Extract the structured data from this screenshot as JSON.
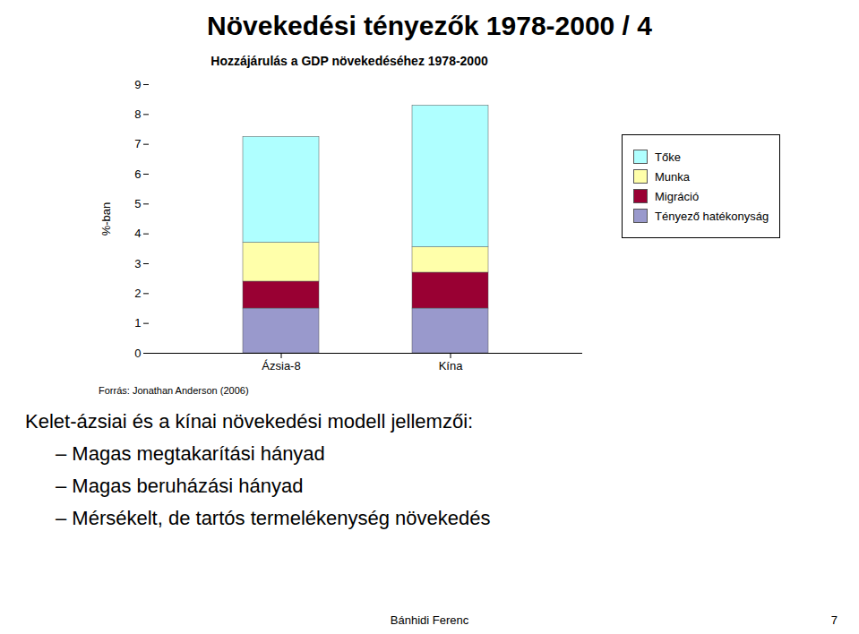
{
  "title": "Növekedési tényezők 1978-2000 / 4",
  "chart_data": {
    "type": "bar",
    "stacked": true,
    "legend": "right",
    "title": "Hozzájárulás a GDP növekedéséhez 1978-2000",
    "ylabel": "%-ban",
    "categories": [
      "Ázsia-8",
      "Kína"
    ],
    "series": [
      {
        "name": "Tényező hatékonyság",
        "color": "#9999CC",
        "values": [
          1.5,
          1.5
        ]
      },
      {
        "name": "Migráció",
        "color": "#990033",
        "values": [
          0.9,
          1.2
        ]
      },
      {
        "name": "Munka",
        "color": "#FFFFAA",
        "values": [
          1.3,
          0.85
        ]
      },
      {
        "name": "Tőke",
        "color": "#AFFFFF",
        "values": [
          3.55,
          4.75
        ]
      }
    ],
    "ylim": [
      0,
      9
    ],
    "yticks": [
      0,
      1,
      2,
      3,
      4,
      5,
      6,
      7,
      8,
      9
    ],
    "grid": false
  },
  "source": "Forrás: Jonathan Anderson (2006)",
  "bullet_header": "Kelet-ázsiai és a kínai növekedési modell jellemzői:",
  "bullet_items": [
    "– Magas megtakarítási hányad",
    "– Magas beruházási hányad",
    "– Mérsékelt, de tartós termelékenység növekedés"
  ],
  "footer_left": "Bánhidi Ferenc",
  "footer_right": "7"
}
